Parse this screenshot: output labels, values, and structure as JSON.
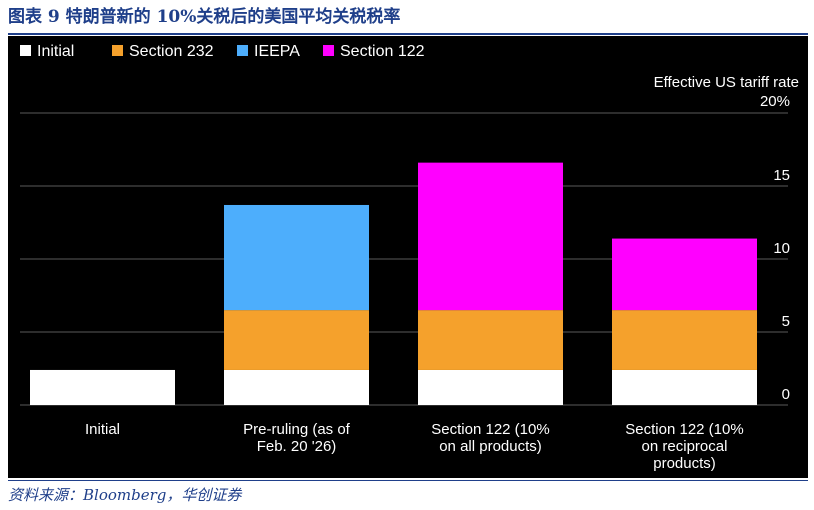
{
  "header": {
    "figure_title": "图表 9  特朗普新的 10%关税后的美国平均关税税率"
  },
  "footer": {
    "source": "资料来源：Bloomberg，华创证券"
  },
  "colors": {
    "background": "#000000",
    "axis_line": "#5a5a5a",
    "text": "#ffffff",
    "brand_blue": "#1f3f8a"
  },
  "chart_data": {
    "type": "bar",
    "stacked": true,
    "title": "",
    "ylabel": "Effective US tariff rate",
    "ylim": [
      0,
      20
    ],
    "ytick_values": [
      0,
      5,
      10,
      15,
      20
    ],
    "ytick_labels": [
      "0",
      "5",
      "10",
      "15",
      "20%"
    ],
    "grid": true,
    "legend_position": "top-left",
    "categories": [
      [
        "Initial"
      ],
      [
        "Pre-ruling (as of",
        "Feb. 20 '26)"
      ],
      [
        "Section 122 (10%",
        "on all products)"
      ],
      [
        "Section 122 (10%",
        "on reciprocal",
        "products)"
      ]
    ],
    "series": [
      {
        "name": "Initial",
        "color": "#ffffff",
        "values": [
          2.4,
          2.4,
          2.4,
          2.4
        ]
      },
      {
        "name": "Section 232",
        "color": "#f5a12c",
        "values": [
          0,
          4.1,
          4.1,
          4.1
        ]
      },
      {
        "name": "IEEPA",
        "color": "#4daefc",
        "values": [
          0,
          7.2,
          0,
          0
        ]
      },
      {
        "name": "Section 122",
        "color": "#ff00ff",
        "values": [
          0,
          0,
          10.1,
          4.9
        ]
      }
    ]
  }
}
